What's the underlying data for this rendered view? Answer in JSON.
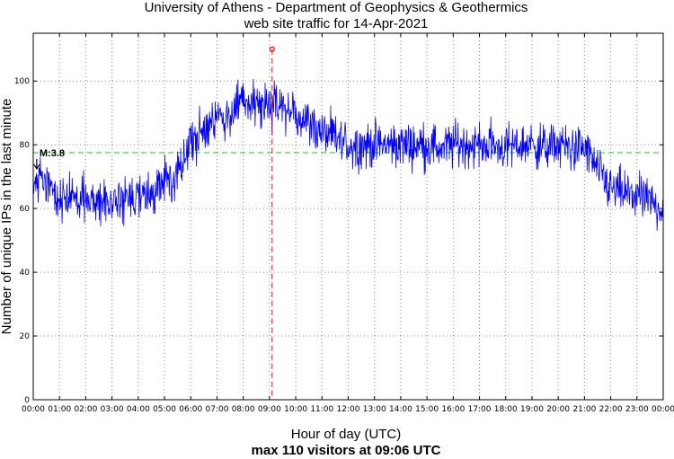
{
  "chart_data": {
    "type": "line",
    "title": "University of Athens - Department of Geophysics & Geothermics",
    "subtitle": "web site traffic for 14-Apr-2021",
    "xlabel": "Hour of day (UTC)",
    "ylabel": "Number of unique IPs in the last minute",
    "footer": "max 110 visitors at 09:06 UTC",
    "xlim_hours": [
      0,
      24
    ],
    "ylim": [
      0,
      115
    ],
    "yticks": [
      0,
      20,
      40,
      60,
      80,
      100
    ],
    "xtick_labels": [
      "00:00",
      "01:00",
      "02:00",
      "03:00",
      "04:00",
      "05:00",
      "06:00",
      "07:00",
      "08:00",
      "09:00",
      "10:00",
      "11:00",
      "12:00",
      "13:00",
      "14:00",
      "15:00",
      "16:00",
      "17:00",
      "18:00",
      "19:00",
      "20:00",
      "21:00",
      "22:00",
      "23:00",
      "00:00"
    ],
    "grid": true,
    "series": [
      {
        "color": "#0000ff",
        "x_hours": [
          0,
          0.25,
          0.5,
          0.75,
          1,
          1.5,
          2,
          2.5,
          3,
          3.5,
          4,
          4.5,
          5,
          5.5,
          6,
          6.5,
          7,
          7.5,
          8,
          8.5,
          9,
          9.5,
          10,
          10.5,
          11,
          11.5,
          12,
          12.5,
          13,
          13.5,
          14,
          14.5,
          15,
          15.5,
          16,
          16.5,
          17,
          17.5,
          18,
          18.5,
          19,
          19.5,
          20,
          20.5,
          21,
          21.5,
          22,
          22.5,
          23,
          23.5,
          24
        ],
        "y": [
          66,
          70,
          68,
          64,
          63,
          63,
          62,
          62,
          63,
          63,
          63,
          64,
          68,
          72,
          80,
          84,
          88,
          90,
          93,
          93,
          92,
          91,
          90,
          87,
          84,
          82,
          80,
          80,
          80,
          80,
          80,
          80,
          80,
          79,
          80,
          80,
          80,
          80,
          79,
          80,
          80,
          79,
          80,
          79,
          79,
          72,
          66,
          65,
          64,
          62,
          60
        ],
        "noise": 7
      }
    ],
    "peak": {
      "time": "09:06",
      "hours": 9.1,
      "value": 110,
      "color": "#ff0000"
    },
    "reference_line": {
      "value": 77.5,
      "color": "#00dd00"
    },
    "annotation": {
      "label": "M:3.8",
      "hours": 0.27
    }
  }
}
